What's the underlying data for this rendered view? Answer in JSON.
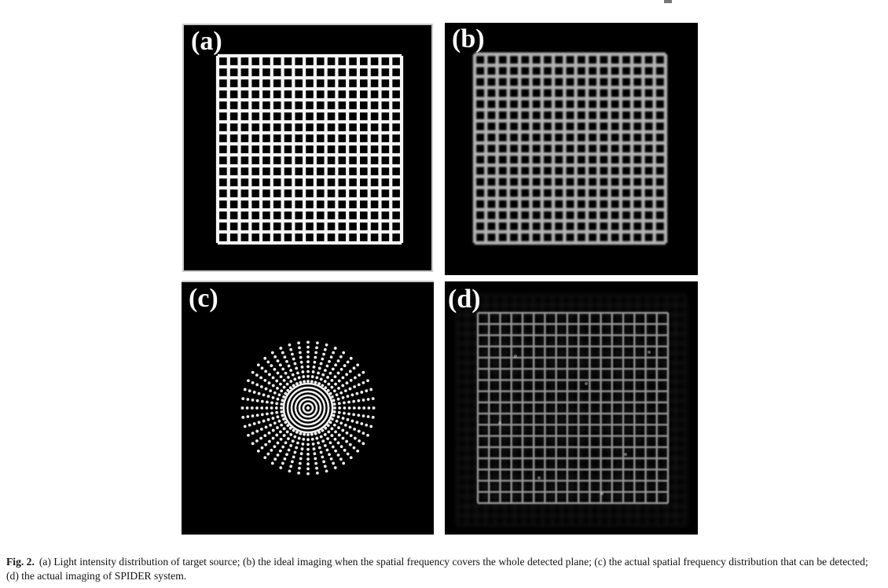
{
  "figure": {
    "panels": [
      {
        "id": "a",
        "label": "(a)",
        "pattern": "sharp-grid",
        "grid_cells": 17
      },
      {
        "id": "b",
        "label": "(b)",
        "pattern": "blurred-grid",
        "grid_cells": 17
      },
      {
        "id": "c",
        "label": "(c)",
        "pattern": "radial-dot-spectrum",
        "spokes": 44
      },
      {
        "id": "d",
        "label": "(d)",
        "pattern": "noisy-grid",
        "grid_cells": 17
      }
    ],
    "caption_label": "Fig. 2.",
    "caption_text": "(a) Light intensity distribution of target source; (b) the ideal imaging when the spatial frequency covers the whole detected plane; (c) the actual spatial frequency distribution that can be detected; (d) the actual imaging of SPIDER system."
  }
}
